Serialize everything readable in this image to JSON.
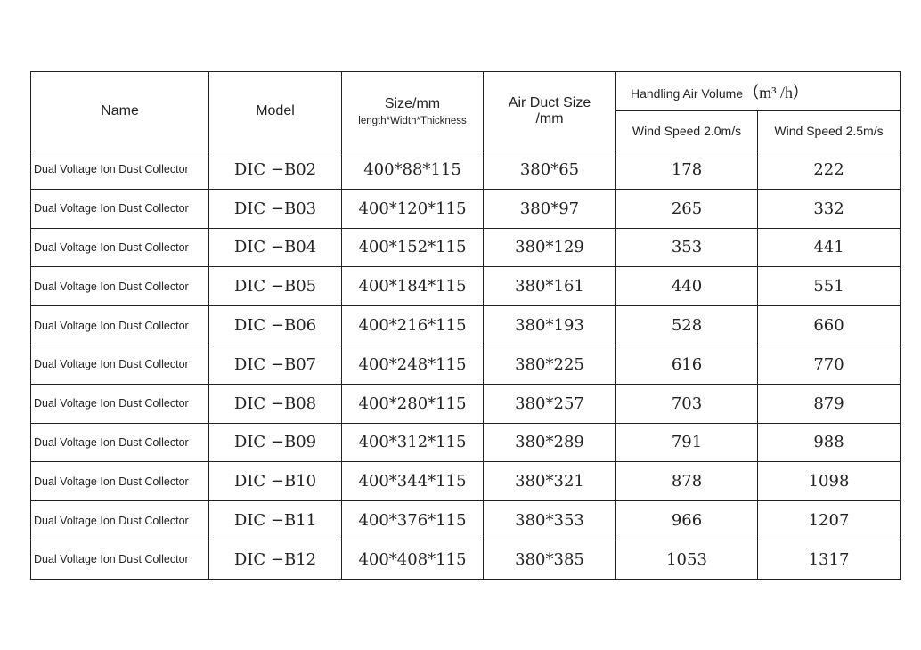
{
  "header": {
    "name": "Name",
    "model": "Model",
    "size": "Size/mm",
    "size_sub": "length*Width*Thickness",
    "duct_line1": "Air Duct Size",
    "duct_line2": "/mm",
    "air_volume": "Handling Air Volume",
    "air_volume_unit": "（m³ /h）",
    "wind_20": "Wind Speed 2.0m/s",
    "wind_25": "Wind Speed 2.5m/s"
  },
  "rows": [
    {
      "name": "Dual Voltage Ion Dust Collector",
      "model": "DIC −B02",
      "size": "400*88*115",
      "duct": "380*65",
      "v20": "178",
      "v25": "222"
    },
    {
      "name": "Dual Voltage Ion Dust Collector",
      "model": "DIC −B03",
      "size": "400*120*115",
      "duct": "380*97",
      "v20": "265",
      "v25": "332"
    },
    {
      "name": "Dual Voltage Ion Dust Collector",
      "model": "DIC −B04",
      "size": "400*152*115",
      "duct": "380*129",
      "v20": "353",
      "v25": "441"
    },
    {
      "name": "Dual Voltage Ion Dust Collector",
      "model": "DIC −B05",
      "size": "400*184*115",
      "duct": "380*161",
      "v20": "440",
      "v25": "551"
    },
    {
      "name": "Dual Voltage Ion Dust Collector",
      "model": "DIC −B06",
      "size": "400*216*115",
      "duct": "380*193",
      "v20": "528",
      "v25": "660"
    },
    {
      "name": "Dual Voltage Ion Dust Collector",
      "model": "DIC −B07",
      "size": "400*248*115",
      "duct": "380*225",
      "v20": "616",
      "v25": "770"
    },
    {
      "name": "Dual Voltage Ion Dust Collector",
      "model": "DIC −B08",
      "size": "400*280*115",
      "duct": "380*257",
      "v20": "703",
      "v25": "879"
    },
    {
      "name": "Dual Voltage Ion Dust Collector",
      "model": "DIC −B09",
      "size": "400*312*115",
      "duct": "380*289",
      "v20": "791",
      "v25": "988"
    },
    {
      "name": "Dual Voltage Ion Dust Collector",
      "model": "DIC −B10",
      "size": "400*344*115",
      "duct": "380*321",
      "v20": "878",
      "v25": "1098"
    },
    {
      "name": "Dual Voltage Ion Dust Collector",
      "model": "DIC −B11",
      "size": "400*376*115",
      "duct": "380*353",
      "v20": "966",
      "v25": "1207"
    },
    {
      "name": "Dual Voltage Ion Dust Collector",
      "model": "DIC −B12",
      "size": "400*408*115",
      "duct": "380*385",
      "v20": "1053",
      "v25": "1317"
    }
  ]
}
